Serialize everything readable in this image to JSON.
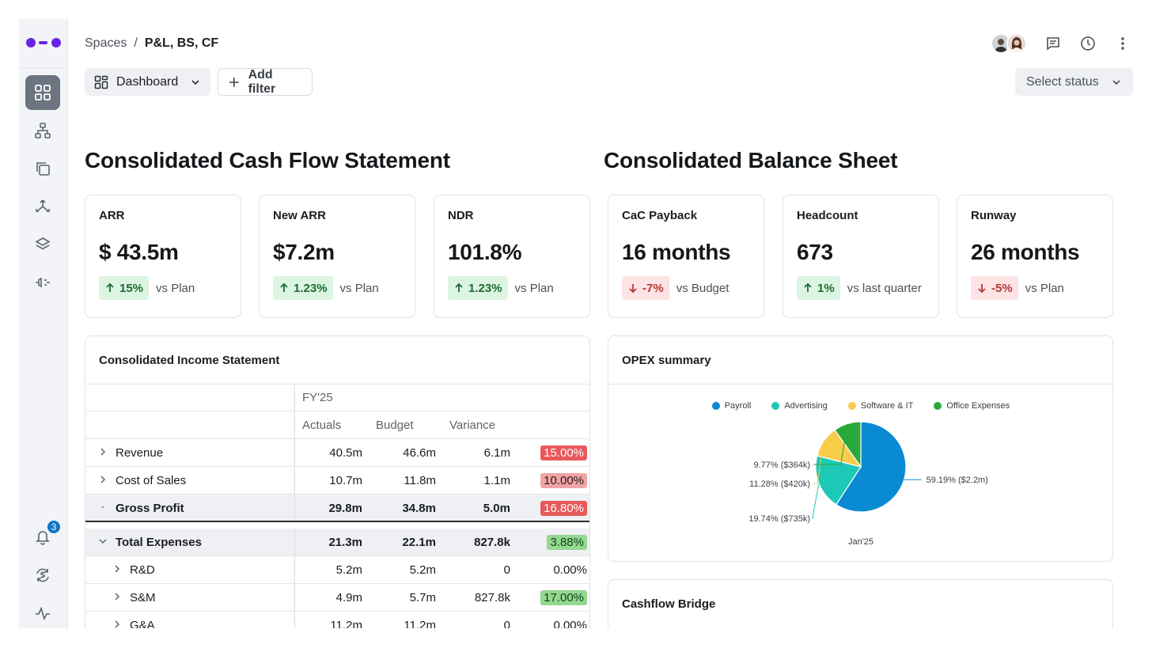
{
  "breadcrumb": {
    "root": "Spaces",
    "separator": "/",
    "current": "P&L, BS, CF"
  },
  "toolbar": {
    "view_label": "Dashboard",
    "filter_label": "Add filter",
    "status_placeholder": "Select status"
  },
  "notifications": {
    "count": "3"
  },
  "sections": {
    "left_title": "Consolidated Cash Flow Statement",
    "right_title": "Consolidated Balance Sheet"
  },
  "kpis": [
    {
      "label": "ARR",
      "value": "$ 43.5m",
      "change": "15%",
      "direction": "up",
      "comparison": "vs Plan"
    },
    {
      "label": "New ARR",
      "value": "$7.2m",
      "change": "1.23%",
      "direction": "up",
      "comparison": "vs Plan"
    },
    {
      "label": "NDR",
      "value": "101.8%",
      "change": "1.23%",
      "direction": "up",
      "comparison": "vs Plan"
    },
    {
      "label": "CaC Payback",
      "value": "16 months",
      "change": "-7%",
      "direction": "down",
      "comparison": "vs Budget"
    },
    {
      "label": "Headcount",
      "value": "673",
      "change": "1%",
      "direction": "up",
      "comparison": "vs last quarter"
    },
    {
      "label": "Runway",
      "value": "26 months",
      "change": "-5%",
      "direction": "down",
      "comparison": "vs Plan"
    }
  ],
  "income_statement": {
    "title": "Consolidated Income Statement",
    "period": "FY'25",
    "columns": [
      "Actuals",
      "Budget",
      "Variance"
    ],
    "rows": [
      {
        "label": "Revenue",
        "actuals": "40.5m",
        "budget": "46.6m",
        "variance": "6.1m",
        "pct": "15.00%",
        "pct_style": "red"
      },
      {
        "label": "Cost of Sales",
        "actuals": "10.7m",
        "budget": "11.8m",
        "variance": "1.1m",
        "pct": "10.00%",
        "pct_style": "pink"
      },
      {
        "label": "Gross Profit",
        "actuals": "29.8m",
        "budget": "34.8m",
        "variance": "5.0m",
        "pct": "16.80%",
        "pct_style": "red"
      },
      {
        "label": "Total Expenses",
        "actuals": "21.3m",
        "budget": "22.1m",
        "variance": "827.8k",
        "pct": "3.88%",
        "pct_style": "green"
      },
      {
        "label": "R&D",
        "actuals": "5.2m",
        "budget": "5.2m",
        "variance": "0",
        "pct": "0.00%",
        "pct_style": "none"
      },
      {
        "label": "S&M",
        "actuals": "4.9m",
        "budget": "5.7m",
        "variance": "827.8k",
        "pct": "17.00%",
        "pct_style": "green"
      },
      {
        "label": "G&A",
        "actuals": "11.2m",
        "budget": "11.2m",
        "variance": "0",
        "pct": "0.00%",
        "pct_style": "none"
      }
    ]
  },
  "opex": {
    "title": "OPEX summary",
    "period_label": "Jan'25"
  },
  "cashflow_bridge": {
    "title": "Cashflow Bridge"
  },
  "chart_data": {
    "type": "pie",
    "title": "OPEX summary",
    "categories": [
      "Payroll",
      "Advertising",
      "Software & IT",
      "Office Expenses"
    ],
    "values": [
      59.19,
      19.74,
      11.28,
      9.77
    ],
    "amounts": [
      "$2.2m",
      "$735k",
      "$420k",
      "$364k"
    ],
    "labels": [
      "59.19% ($2.2m)",
      "19.74% ($735k)",
      "11.28% ($420k)",
      "9.77% ($364k)"
    ],
    "colors": [
      "#0a8ad2",
      "#1ec8b6",
      "#f7cd4a",
      "#2aa83a"
    ],
    "xlabel": "Jan'25",
    "legend": "top"
  }
}
